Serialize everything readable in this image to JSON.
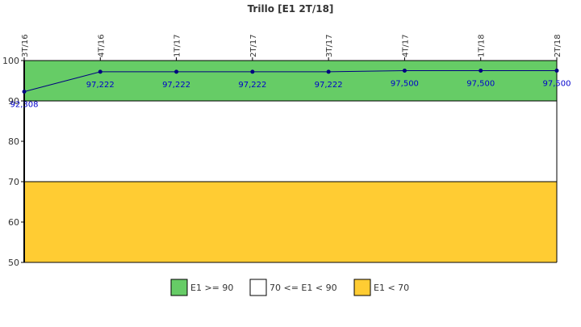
{
  "chart_data": {
    "type": "line",
    "title": "Trillo [E1 2T/18]",
    "categories": [
      "3T/16",
      "4T/16",
      "1T/17",
      "2T/17",
      "3T/17",
      "4T/17",
      "1T/18",
      "2T/18"
    ],
    "series": [
      {
        "values": [
          92.308,
          97.222,
          97.222,
          97.222,
          97.222,
          97.5,
          97.5,
          97.5
        ],
        "labels": [
          "92,308",
          "97,222",
          "97,222",
          "97,222",
          "97,222",
          "97,500",
          "97,500",
          "97,500"
        ],
        "color": "#000080"
      }
    ],
    "ylim": [
      50,
      100
    ],
    "yticks": [
      50,
      60,
      70,
      80,
      90,
      100
    ],
    "bands": [
      {
        "from": 90,
        "to": 100,
        "color": "#66cc66",
        "legend": "E1 >= 90"
      },
      {
        "from": 70,
        "to": 90,
        "color": "#ffffff",
        "legend": "70 <= E1 < 90"
      },
      {
        "from": 50,
        "to": 70,
        "color": "#ffcc33",
        "legend": "E1 < 70"
      }
    ],
    "legend_position": "bottom"
  }
}
